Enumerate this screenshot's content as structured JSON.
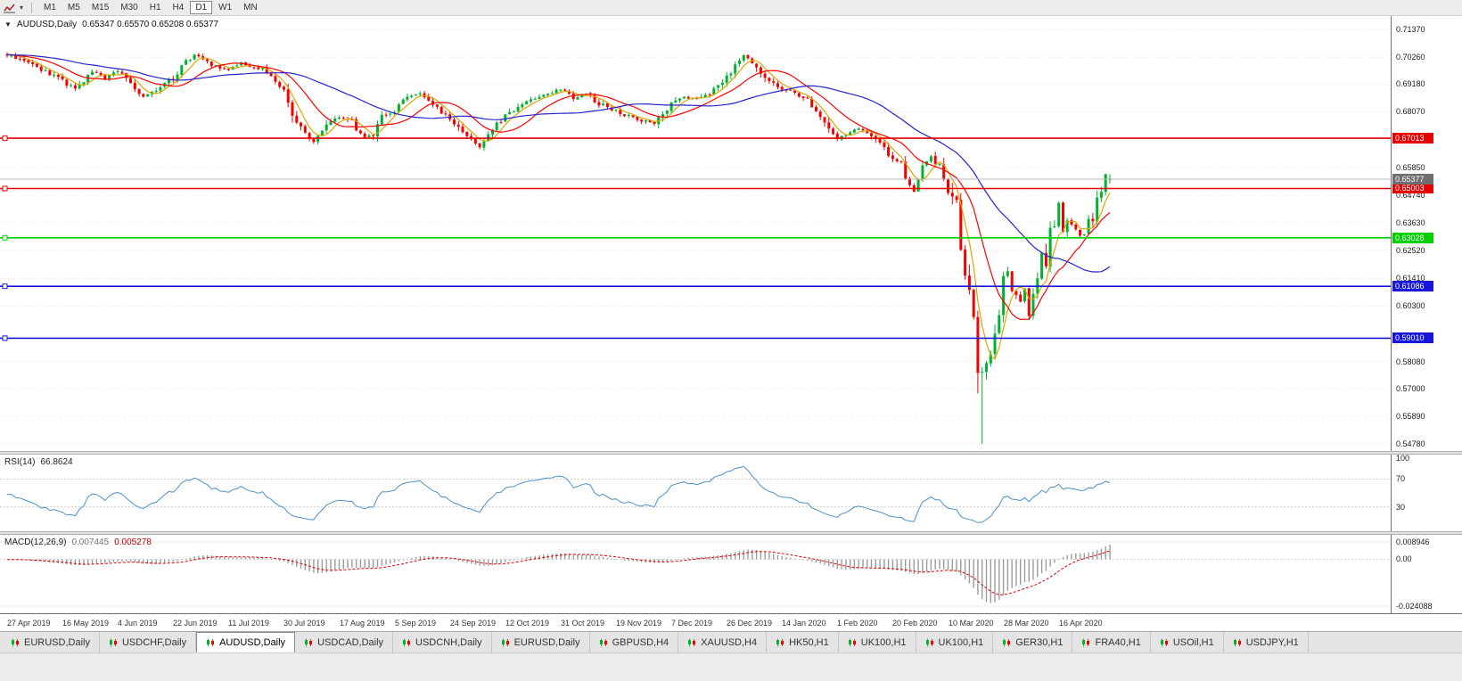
{
  "toolbar": {
    "left_icons": [
      {
        "name": "chart-line-icon"
      },
      {
        "name": "dropdown-arrow-icon"
      }
    ],
    "timeframes": [
      {
        "label": "M1",
        "active": false
      },
      {
        "label": "M5",
        "active": false
      },
      {
        "label": "M15",
        "active": false
      },
      {
        "label": "M30",
        "active": false
      },
      {
        "label": "H1",
        "active": false
      },
      {
        "label": "H4",
        "active": false
      },
      {
        "label": "D1",
        "active": true
      },
      {
        "label": "W1",
        "active": false
      },
      {
        "label": "MN",
        "active": false
      }
    ]
  },
  "chart": {
    "title_symbol": "AUDUSD,Daily",
    "title_ohlc": "0.65347 0.65570 0.65208 0.65377"
  },
  "price_axis": {
    "ticks": [
      "0.71370",
      "0.70260",
      "0.69180",
      "0.68070",
      "0.65850",
      "0.64740",
      "0.63630",
      "0.62520",
      "0.61410",
      "0.60300",
      "0.58080",
      "0.57000",
      "0.55890",
      "0.54780"
    ],
    "current": {
      "label": "0.65377",
      "price": 0.65377,
      "bg": "#6e6e6e"
    }
  },
  "rsi": {
    "name": "RSI(14)",
    "value": "66.8624",
    "levels": [
      70,
      30
    ],
    "axis": [
      {
        "label": "100",
        "value": 100
      },
      {
        "label": "70",
        "value": 70
      },
      {
        "label": "30",
        "value": 30
      }
    ]
  },
  "macd": {
    "name": "MACD(12,26,9)",
    "value_main": "0.007445",
    "value_signal": "0.005278",
    "ymax": 0.008946,
    "ymin": -0.024088,
    "axis": [
      {
        "label": "0.008946",
        "value": 0.008946
      },
      {
        "label": "0.00",
        "value": 0
      },
      {
        "label": "-0.024088",
        "value": -0.024088
      }
    ]
  },
  "date_axis": {
    "labels": [
      "27 Apr 2019",
      "16 May 2019",
      "4 Jun 2019",
      "22 Jun 2019",
      "11 Jul 2019",
      "30 Jul 2019",
      "17 Aug 2019",
      "5 Sep 2019",
      "24 Sep 2019",
      "12 Oct 2019",
      "31 Oct 2019",
      "19 Nov 2019",
      "7 Dec 2019",
      "26 Dec 2019",
      "14 Jan 2020",
      "1 Feb 2020",
      "20 Feb 2020",
      "10 Mar 2020",
      "28 Mar 2020",
      "16 Apr 2020"
    ],
    "candles_per_label": 13
  },
  "tabs": [
    {
      "label": "EURUSD,Daily",
      "active": false
    },
    {
      "label": "USDCHF,Daily",
      "active": false
    },
    {
      "label": "AUDUSD,Daily",
      "active": true
    },
    {
      "label": "USDCAD,Daily",
      "active": false
    },
    {
      "label": "USDCNH,Daily",
      "active": false
    },
    {
      "label": "EURUSD,Daily",
      "active": false
    },
    {
      "label": "GBPUSD,H4",
      "active": false
    },
    {
      "label": "XAUUSD,H4",
      "active": false
    },
    {
      "label": "HK50,H1",
      "active": false
    },
    {
      "label": "UK100,H1",
      "active": false
    },
    {
      "label": "UK100,H1",
      "active": false
    },
    {
      "label": "GER30,H1",
      "active": false
    },
    {
      "label": "FRA40,H1",
      "active": false
    },
    {
      "label": "USOil,H1",
      "active": false
    },
    {
      "label": "USDJPY,H1",
      "active": false
    }
  ],
  "colors": {
    "bull": "#00b22d",
    "bear": "#f40000",
    "grid": "#e4e4e4",
    "current_line": "#b9b9b9",
    "rsi_line": "#4a90c8",
    "macd_hist": "#9b9b9b",
    "macd_signal": "#e00000"
  },
  "chart_data": {
    "type": "candlestick",
    "symbol": "AUDUSD",
    "timeframe": "Daily",
    "ohlc_current": {
      "open": 0.65347,
      "high": 0.6557,
      "low": 0.65208,
      "close": 0.65377
    },
    "ylim": [
      0.5478,
      0.7137
    ],
    "num_candles": 260,
    "anchors": [
      [
        0,
        0.7035
      ],
      [
        4,
        0.7012
      ],
      [
        8,
        0.6978
      ],
      [
        13,
        0.6932
      ],
      [
        16,
        0.6896
      ],
      [
        20,
        0.6972
      ],
      [
        23,
        0.694
      ],
      [
        26,
        0.6974
      ],
      [
        29,
        0.692
      ],
      [
        32,
        0.6866
      ],
      [
        35,
        0.6894
      ],
      [
        39,
        0.6944
      ],
      [
        42,
        0.7008
      ],
      [
        44,
        0.7034
      ],
      [
        47,
        0.7002
      ],
      [
        52,
        0.6972
      ],
      [
        55,
        0.7004
      ],
      [
        60,
        0.6976
      ],
      [
        63,
        0.693
      ],
      [
        65,
        0.69
      ],
      [
        67,
        0.6802
      ],
      [
        70,
        0.6716
      ],
      [
        72,
        0.6681
      ],
      [
        75,
        0.6754
      ],
      [
        78,
        0.6786
      ],
      [
        81,
        0.6766
      ],
      [
        84,
        0.6701
      ],
      [
        86,
        0.6722
      ],
      [
        88,
        0.679
      ],
      [
        91,
        0.6812
      ],
      [
        94,
        0.6866
      ],
      [
        97,
        0.6886
      ],
      [
        100,
        0.683
      ],
      [
        104,
        0.678
      ],
      [
        106,
        0.6746
      ],
      [
        111,
        0.6671
      ],
      [
        114,
        0.6746
      ],
      [
        117,
        0.679
      ],
      [
        119,
        0.6812
      ],
      [
        122,
        0.6846
      ],
      [
        125,
        0.687
      ],
      [
        130,
        0.69
      ],
      [
        133,
        0.6862
      ],
      [
        136,
        0.6882
      ],
      [
        139,
        0.684
      ],
      [
        143,
        0.6812
      ],
      [
        146,
        0.679
      ],
      [
        149,
        0.6772
      ],
      [
        152,
        0.6756
      ],
      [
        156,
        0.684
      ],
      [
        159,
        0.687
      ],
      [
        162,
        0.6856
      ],
      [
        165,
        0.6882
      ],
      [
        168,
        0.692
      ],
      [
        171,
        0.699
      ],
      [
        173,
        0.703
      ],
      [
        176,
        0.6992
      ],
      [
        179,
        0.6922
      ],
      [
        182,
        0.69
      ],
      [
        185,
        0.688
      ],
      [
        188,
        0.6856
      ],
      [
        190,
        0.6812
      ],
      [
        192,
        0.6762
      ],
      [
        195,
        0.6692
      ],
      [
        197,
        0.6722
      ],
      [
        200,
        0.6742
      ],
      [
        202,
        0.6722
      ],
      [
        205,
        0.6682
      ],
      [
        208,
        0.6622
      ],
      [
        210,
        0.6592
      ],
      [
        213,
        0.6482
      ],
      [
        215,
        0.6602
      ],
      [
        217,
        0.6632
      ],
      [
        219,
        0.6582
      ],
      [
        221,
        0.6492
      ],
      [
        223,
        0.6452
      ],
      [
        224,
        0.6232
      ],
      [
        225,
        0.6152
      ],
      [
        226,
        0.6102
      ],
      [
        227,
        0.5982
      ],
      [
        228,
        0.5772
      ],
      [
        229,
        0.5752
      ],
      [
        230,
        0.5802
      ],
      [
        231,
        0.5832
      ],
      [
        232,
        0.5932
      ],
      [
        233,
        0.5972
      ],
      [
        234,
        0.6132
      ],
      [
        235,
        0.6172
      ],
      [
        236,
        0.6092
      ],
      [
        238,
        0.6052
      ],
      [
        239,
        0.6102
      ],
      [
        240,
        0.6002
      ],
      [
        241,
        0.6092
      ],
      [
        242,
        0.6142
      ],
      [
        243,
        0.6232
      ],
      [
        244,
        0.6182
      ],
      [
        245,
        0.6352
      ],
      [
        246,
        0.6346
      ],
      [
        247,
        0.644
      ],
      [
        248,
        0.6322
      ],
      [
        249,
        0.6366
      ],
      [
        251,
        0.6342
      ],
      [
        252,
        0.6306
      ],
      [
        253,
        0.6322
      ],
      [
        254,
        0.6372
      ],
      [
        255,
        0.6386
      ],
      [
        256,
        0.6466
      ],
      [
        257,
        0.6492
      ],
      [
        258,
        0.655
      ],
      [
        259,
        0.65377
      ]
    ],
    "overrides": {
      "228": {
        "l": 0.568
      },
      "229": {
        "l": 0.5478
      }
    },
    "last_candle": {
      "o": 0.65347,
      "h": 0.6557,
      "l": 0.65208,
      "c": 0.65377
    },
    "moving_averages": [
      {
        "period": 5,
        "color": "#dca600"
      },
      {
        "period": 13,
        "color": "#ff0000"
      },
      {
        "period": 34,
        "color": "#2424cc"
      }
    ],
    "hlines": [
      {
        "price": 0.67013,
        "label": "0.67013",
        "color": "#e60000"
      },
      {
        "price": 0.65003,
        "label": "0.65003",
        "color": "#e60000"
      },
      {
        "price": 0.63028,
        "label": "0.63028",
        "color": "#00cf00"
      },
      {
        "price": 0.61086,
        "label": "0.61086",
        "color": "#1616dd"
      },
      {
        "price": 0.5901,
        "label": "0.59010",
        "color": "#1616dd"
      }
    ]
  }
}
